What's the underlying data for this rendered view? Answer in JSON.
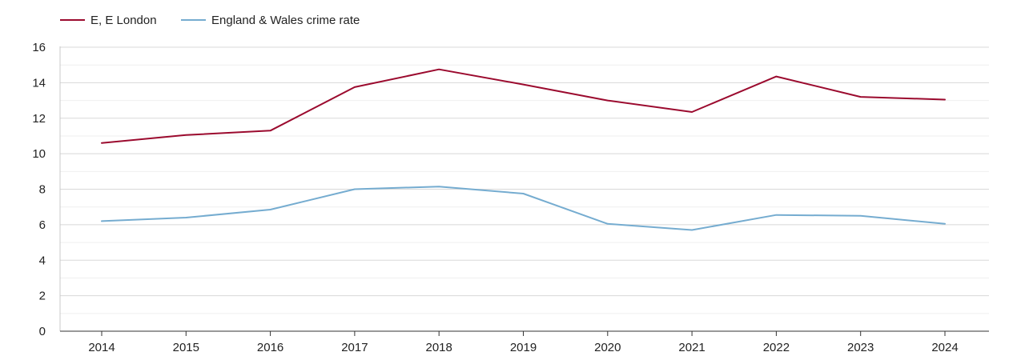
{
  "chart_data": {
    "type": "line",
    "title": "",
    "xlabel": "",
    "ylabel": "",
    "x": [
      "2014",
      "2015",
      "2016",
      "2017",
      "2018",
      "2019",
      "2020",
      "2021",
      "2022",
      "2023",
      "2024"
    ],
    "ylim": [
      0,
      16
    ],
    "yticks": [
      0,
      2,
      4,
      6,
      8,
      10,
      12,
      14,
      16
    ],
    "grid": true,
    "legend_position": "top-left",
    "series": [
      {
        "name": "E, E London",
        "color": "#9b0a2e",
        "values": [
          10.6,
          11.05,
          11.3,
          13.75,
          14.75,
          13.9,
          13.0,
          12.35,
          14.35,
          13.2,
          13.05
        ]
      },
      {
        "name": "England & Wales crime rate",
        "color": "#75acd0",
        "values": [
          6.2,
          6.4,
          6.85,
          8.0,
          8.15,
          7.75,
          6.05,
          5.7,
          6.55,
          6.5,
          6.05
        ]
      }
    ]
  }
}
